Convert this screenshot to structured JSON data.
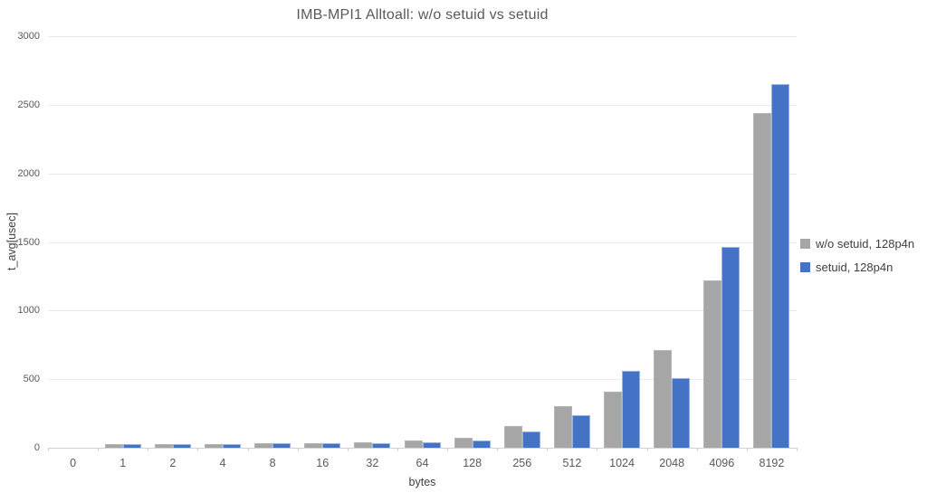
{
  "chart_data": {
    "type": "bar",
    "title": "IMB-MPI1 Alltoall: w/o setuid vs setuid",
    "xlabel": "bytes",
    "ylabel": "t_avg[usec]",
    "categories": [
      "0",
      "1",
      "2",
      "4",
      "8",
      "16",
      "32",
      "64",
      "128",
      "256",
      "512",
      "1024",
      "2048",
      "4096",
      "8192"
    ],
    "series": [
      {
        "name": "w/o setuid, 128p4n",
        "color": "#a6a6a6",
        "values": [
          0,
          25,
          25,
          25,
          30,
          33,
          37,
          50,
          75,
          155,
          300,
          412,
          715,
          1220,
          2440
        ]
      },
      {
        "name": "setuid, 128p4n",
        "color": "#4472c4",
        "values": [
          0,
          27,
          27,
          28,
          32,
          35,
          35,
          42,
          50,
          120,
          240,
          560,
          510,
          1465,
          2650
        ]
      }
    ],
    "ylim": [
      0,
      3000
    ],
    "yticks": [
      0,
      500,
      1000,
      1500,
      2000,
      2500,
      3000
    ],
    "grid": true,
    "legend_position": "right"
  },
  "colors": {
    "series_gray": "#a6a6a6",
    "series_blue": "#4472c4",
    "gridline": "#e9e9e9",
    "axis_text": "#595959",
    "title_text": "#595959"
  }
}
